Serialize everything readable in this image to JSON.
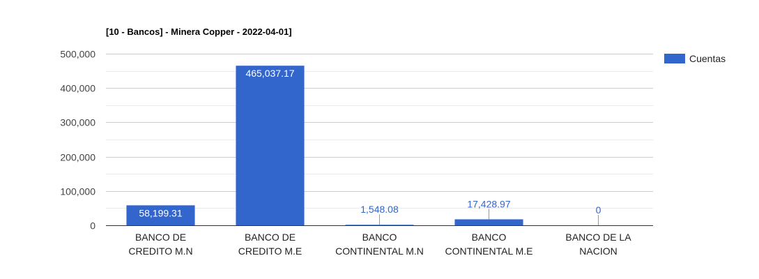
{
  "chart_data": {
    "type": "bar",
    "title": "[10 - Bancos] - Minera Copper - 2022-04-01]",
    "xlabel": "",
    "ylabel": "",
    "ylim": [
      0,
      500000
    ],
    "yticks": [
      0,
      100000,
      200000,
      300000,
      400000,
      500000
    ],
    "ytick_labels": [
      "0",
      "100,000",
      "200,000",
      "300,000",
      "400,000",
      "500,000"
    ],
    "grid": true,
    "legend_position": "right",
    "categories": [
      [
        "BANCO DE",
        "CREDITO M.N"
      ],
      [
        "BANCO DE",
        "CREDITO M.E"
      ],
      [
        "BANCO",
        "CONTINENTAL M.N"
      ],
      [
        "BANCO",
        "CONTINENTAL M.E"
      ],
      [
        "BANCO DE LA",
        "NACION"
      ]
    ],
    "series": [
      {
        "name": "Cuentas",
        "color": "#3366cc",
        "values": [
          58199.31,
          465037.17,
          1548.08,
          17428.97,
          0
        ],
        "labels": [
          "58,199.31",
          "465,037.17",
          "1,548.08",
          "17,428.97",
          "0"
        ]
      }
    ]
  }
}
